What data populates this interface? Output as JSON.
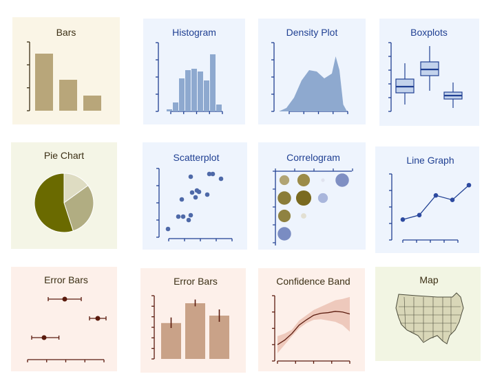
{
  "colors": {
    "tan_bg": "#faf5e6",
    "tan_fill": "#b8a67a",
    "tan_dark": "#3b2f14",
    "blue_bg": "#eef4fd",
    "blue_fill": "#8ea9cf",
    "blue_dark": "#1f3f92",
    "olive_bg": "#f4f5e6",
    "olive_dark": "#6a6a00",
    "olive_mid": "#b1ad82",
    "olive_light": "#dedcc2",
    "salmon_bg": "#fdf0ea",
    "salmon_fill": "#c9a288",
    "maroon": "#5a1a0d",
    "map_bg": "#f2f5e3",
    "map_fill": "#d9d7b8"
  },
  "tiles": {
    "bars": {
      "title": "Bars",
      "chart_data": {
        "type": "bar",
        "values": [
          0.83,
          0.45,
          0.22
        ],
        "ylim": [
          0,
          1
        ]
      }
    },
    "histogram": {
      "title": "Histogram",
      "chart_data": {
        "type": "bar",
        "values": [
          0.03,
          0.13,
          0.48,
          0.6,
          0.62,
          0.58,
          0.45,
          0.83,
          0.1
        ],
        "ylim": [
          0,
          1
        ]
      }
    },
    "density": {
      "title": "Density Plot",
      "chart_data": {
        "type": "area",
        "x": [
          0,
          0.1,
          0.2,
          0.3,
          0.4,
          0.5,
          0.6,
          0.7,
          0.75,
          0.8,
          0.85,
          0.9,
          1
        ],
        "y": [
          0,
          0.05,
          0.2,
          0.45,
          0.6,
          0.58,
          0.48,
          0.55,
          0.8,
          0.6,
          0.1,
          0,
          0
        ],
        "ylim": [
          0,
          1
        ]
      }
    },
    "boxplots": {
      "title": "Boxplots",
      "chart_data": {
        "type": "box",
        "boxes": [
          {
            "min": 0.1,
            "q1": 0.27,
            "median": 0.36,
            "q3": 0.47,
            "max": 0.7
          },
          {
            "min": 0.3,
            "q1": 0.52,
            "median": 0.61,
            "q3": 0.72,
            "max": 0.95
          },
          {
            "min": 0.05,
            "q1": 0.18,
            "median": 0.23,
            "q3": 0.28,
            "max": 0.42
          }
        ]
      }
    },
    "pie": {
      "title": "Pie Chart",
      "chart_data": {
        "type": "pie",
        "values": [
          0.15,
          0.3,
          0.55
        ]
      }
    },
    "scatter": {
      "title": "Scatterplot",
      "chart_data": {
        "type": "scatter",
        "points": [
          [
            0.05,
            0.12
          ],
          [
            0.2,
            0.3
          ],
          [
            0.27,
            0.3
          ],
          [
            0.35,
            0.25
          ],
          [
            0.38,
            0.32
          ],
          [
            0.25,
            0.55
          ],
          [
            0.45,
            0.58
          ],
          [
            0.47,
            0.68
          ],
          [
            0.5,
            0.66
          ],
          [
            0.38,
            0.88
          ],
          [
            0.62,
            0.62
          ],
          [
            0.65,
            0.92
          ],
          [
            0.7,
            0.92
          ],
          [
            0.82,
            0.85
          ],
          [
            0.4,
            0.65
          ]
        ],
        "xlim": [
          0,
          1
        ],
        "ylim": [
          0,
          1
        ]
      }
    },
    "correlogram": {
      "title": "Correlogram",
      "chart_data": {
        "type": "heatmap",
        "rows": [
          [
            {
              "r": 0.55,
              "c": "#b1a474"
            },
            {
              "r": 0.7,
              "c": "#9b8b48"
            },
            {
              "r": 0.2,
              "c": "#e0e3ee"
            },
            {
              "r": 0.75,
              "c": "#7f8fc3"
            }
          ],
          [
            {
              "r": 0.75,
              "c": "#8a7c38"
            },
            {
              "r": 0.85,
              "c": "#7a6a20"
            },
            {
              "r": 0.55,
              "c": "#a9b6dc"
            }
          ],
          [
            {
              "r": 0.7,
              "c": "#8f8241"
            },
            {
              "r": 0.3,
              "c": "#e2dfd2"
            }
          ],
          [
            {
              "r": 0.75,
              "c": "#7a8cc2"
            }
          ]
        ]
      }
    },
    "linegraph": {
      "title": "Line Graph",
      "chart_data": {
        "type": "line",
        "x": [
          0,
          0.2,
          0.4,
          0.6,
          0.8
        ],
        "y": [
          0.18,
          0.28,
          0.72,
          0.62,
          0.95
        ],
        "ylim": [
          0,
          1
        ]
      }
    },
    "errorbars_h": {
      "title": "Error Bars",
      "chart_data": {
        "type": "errorbar",
        "points": [
          {
            "x": 0.45,
            "lo": 0.25,
            "hi": 0.65,
            "y": 0.85
          },
          {
            "x": 0.85,
            "lo": 0.75,
            "hi": 0.95,
            "y": 0.5
          },
          {
            "x": 0.2,
            "lo": 0.05,
            "hi": 0.38,
            "y": 0.15
          }
        ]
      }
    },
    "errorbars_v": {
      "title": "Error Bars",
      "chart_data": {
        "type": "bar",
        "values": [
          0.58,
          0.9,
          0.7
        ],
        "errors": [
          [
            0.5,
            0.67
          ],
          [
            0.85,
            0.96
          ],
          [
            0.6,
            0.8
          ]
        ],
        "ylim": [
          0,
          1
        ]
      }
    },
    "confidence": {
      "title": "Confidence Band",
      "chart_data": {
        "type": "line",
        "x": [
          0,
          0.1,
          0.2,
          0.3,
          0.4,
          0.5,
          0.6,
          0.7,
          0.8,
          0.9,
          1
        ],
        "y": [
          0.25,
          0.32,
          0.42,
          0.55,
          0.63,
          0.7,
          0.73,
          0.74,
          0.76,
          0.75,
          0.72
        ],
        "lo": [
          0.12,
          0.25,
          0.38,
          0.5,
          0.58,
          0.63,
          0.64,
          0.62,
          0.6,
          0.55,
          0.45
        ],
        "hi": [
          0.38,
          0.42,
          0.48,
          0.62,
          0.7,
          0.78,
          0.83,
          0.88,
          0.93,
          0.95,
          0.98
        ],
        "ylim": [
          0,
          1
        ]
      }
    },
    "map": {
      "title": "Map"
    }
  }
}
